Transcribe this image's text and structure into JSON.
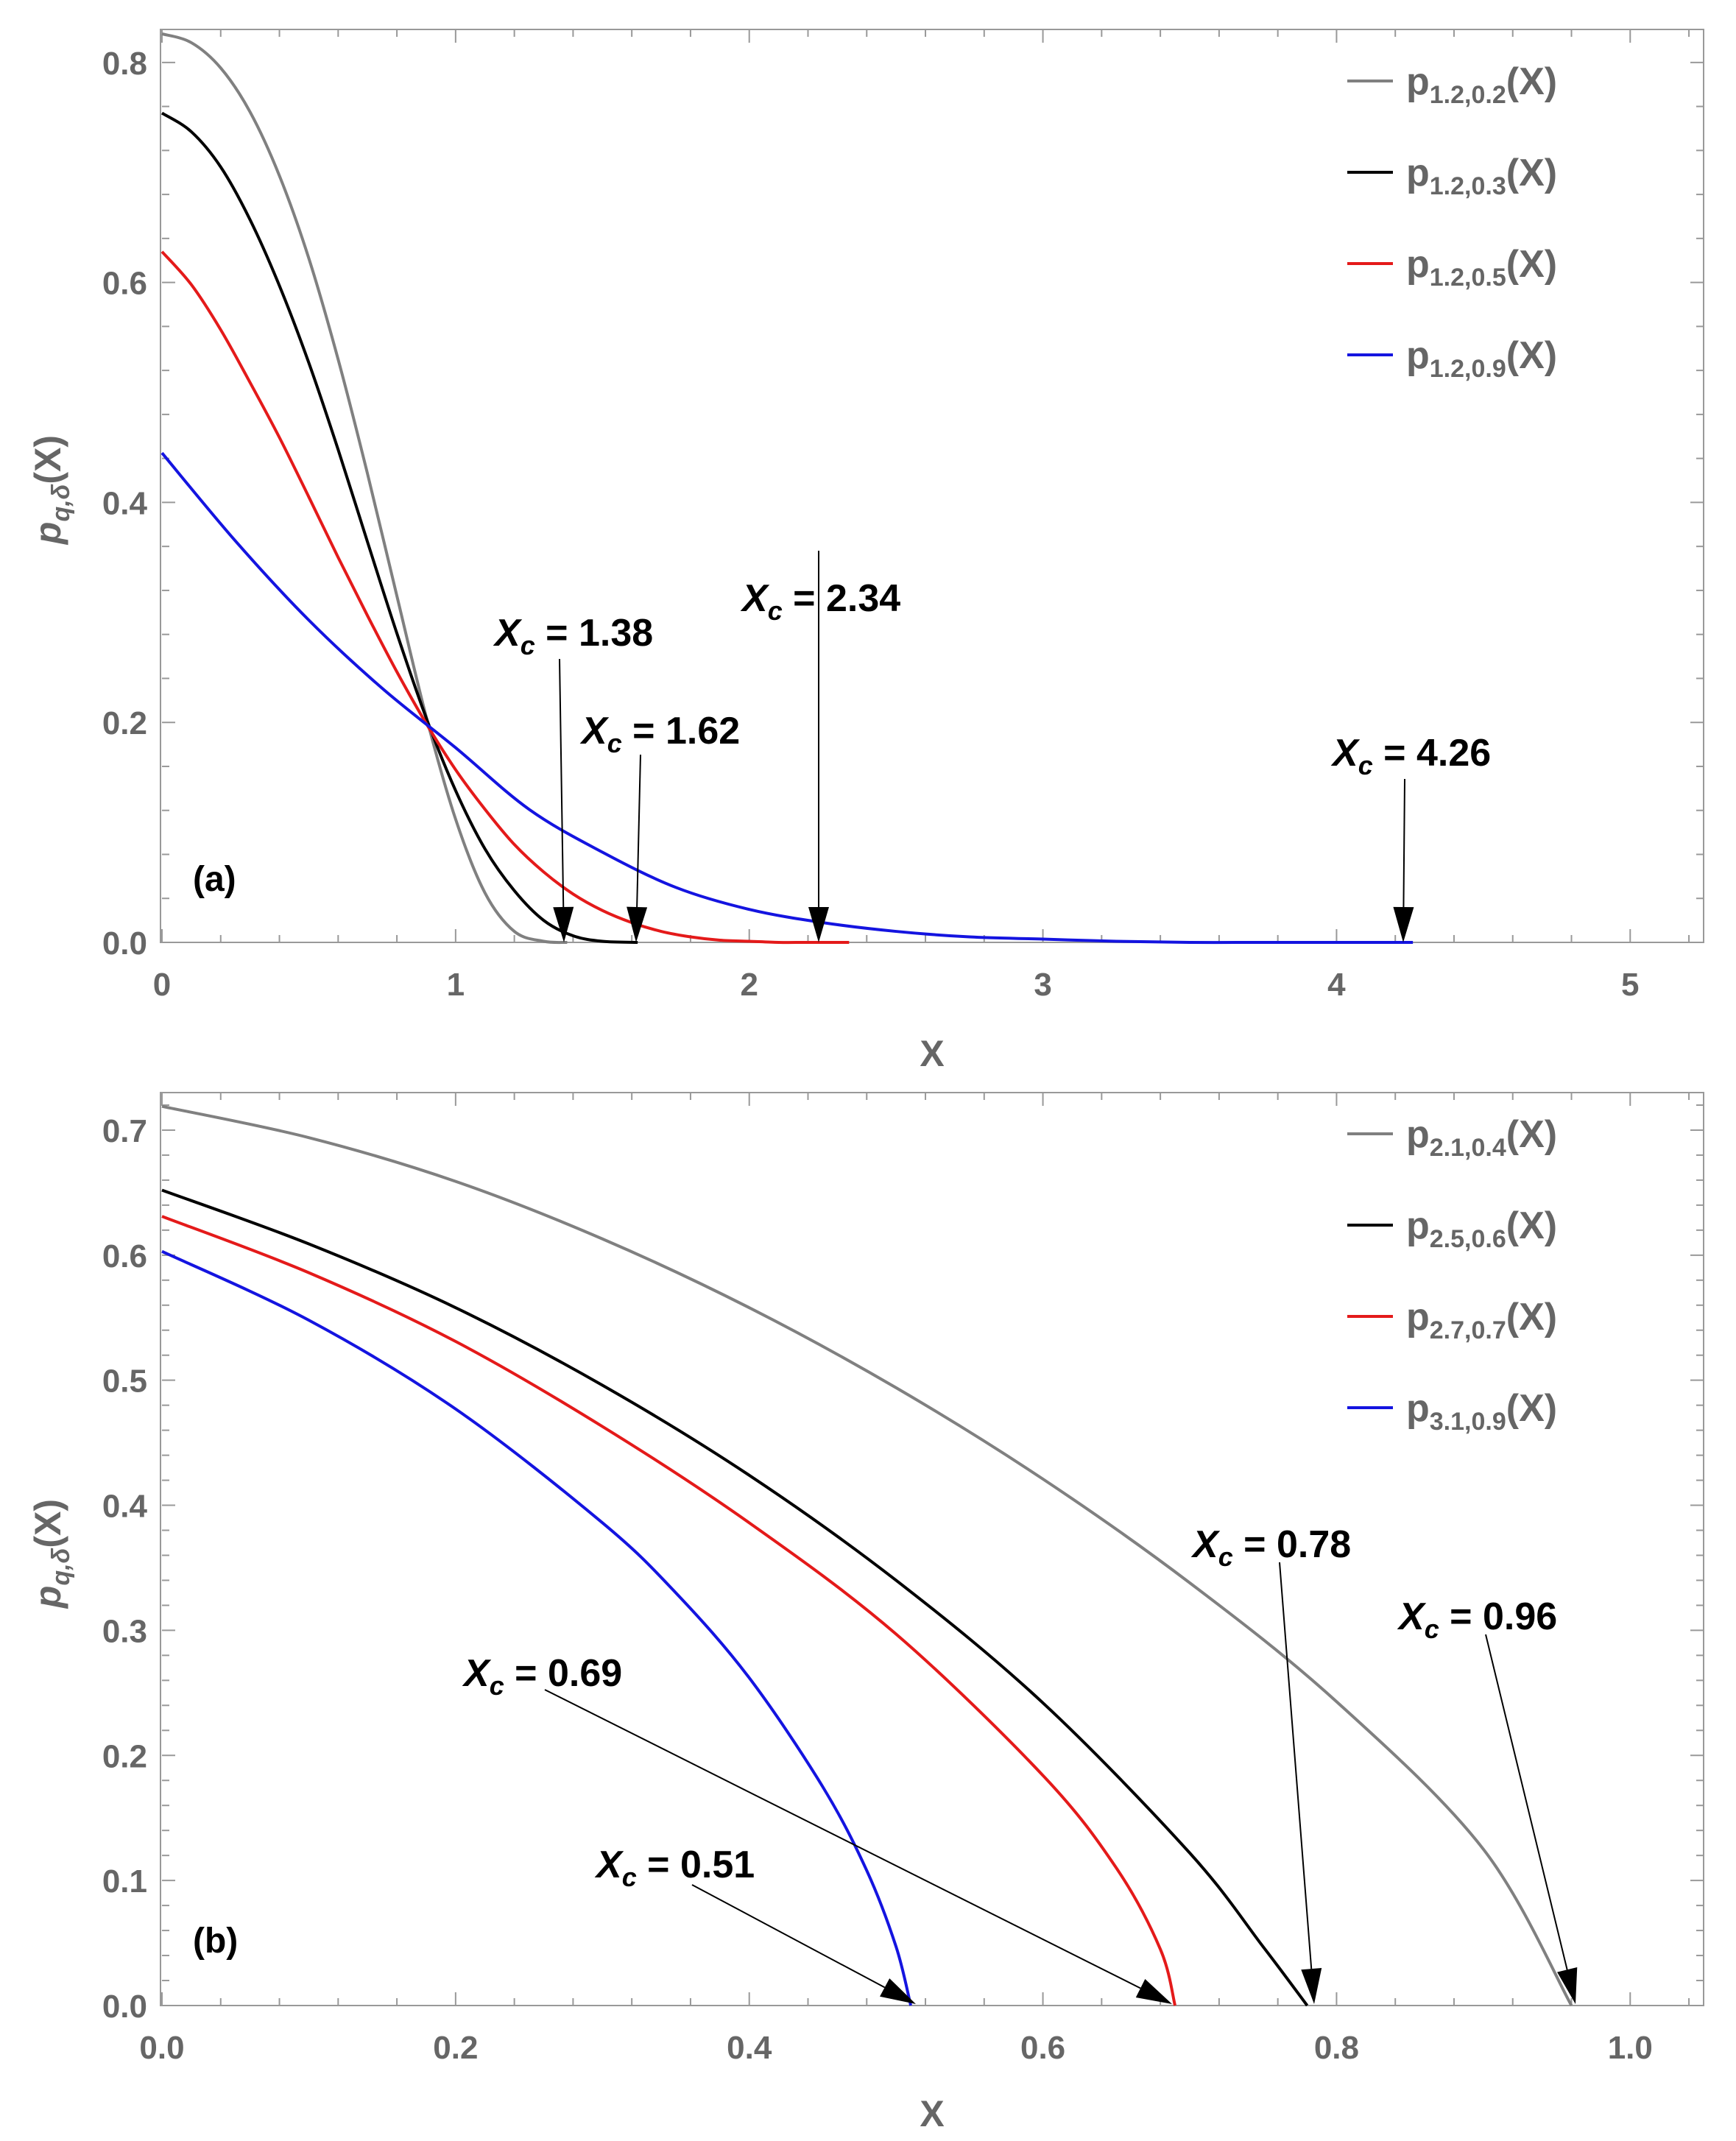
{
  "chart_data": [
    {
      "type": "line",
      "panel_label": "(a)",
      "xlabel": "X",
      "ylabel": {
        "base": "p",
        "sub": "q,δ",
        "tail": "(X)"
      },
      "xlim": [
        0,
        5.25
      ],
      "ylim": [
        0,
        0.83
      ],
      "xticks": [
        0,
        1,
        2,
        3,
        4,
        5
      ],
      "xtick_labels": [
        "0",
        "1",
        "2",
        "3",
        "4",
        "5"
      ],
      "yticks": [
        0,
        0.2,
        0.4,
        0.6,
        0.8
      ],
      "ytick_labels": [
        "0.0",
        "0.2",
        "0.4",
        "0.6",
        "0.8"
      ],
      "legend_position": "top-right",
      "series": [
        {
          "name": "p1.2,0.2(X)",
          "label_sub": "1.2,0.2",
          "color": "#808080",
          "xc": 1.38,
          "x": [
            0,
            0.1,
            0.2,
            0.3,
            0.4,
            0.5,
            0.6,
            0.7,
            0.8,
            0.9,
            1.0,
            1.1,
            1.2,
            1.3,
            1.38
          ],
          "y": [
            0.826,
            0.818,
            0.795,
            0.755,
            0.697,
            0.622,
            0.53,
            0.426,
            0.315,
            0.205,
            0.112,
            0.045,
            0.01,
            0.001,
            0.0
          ]
        },
        {
          "name": "p1.2,0.3(X)",
          "label_sub": "1.2,0.3",
          "color": "#000000",
          "xc": 1.62,
          "x": [
            0,
            0.1,
            0.2,
            0.3,
            0.4,
            0.5,
            0.6,
            0.7,
            0.8,
            0.9,
            1.0,
            1.1,
            1.2,
            1.3,
            1.4,
            1.5,
            1.62
          ],
          "y": [
            0.754,
            0.737,
            0.705,
            0.657,
            0.597,
            0.527,
            0.448,
            0.364,
            0.281,
            0.204,
            0.138,
            0.085,
            0.047,
            0.02,
            0.006,
            0.001,
            0.0
          ]
        },
        {
          "name": "p1.2,0.5(X)",
          "label_sub": "1.2,0.5",
          "color": "#e41a1a",
          "xc": 2.34,
          "x": [
            0,
            0.1,
            0.2,
            0.3,
            0.4,
            0.5,
            0.6,
            0.7,
            0.8,
            0.9,
            1.0,
            1.1,
            1.2,
            1.3,
            1.4,
            1.5,
            1.6,
            1.7,
            1.8,
            1.9,
            2.0,
            2.1,
            2.2,
            2.34
          ],
          "y": [
            0.628,
            0.598,
            0.557,
            0.509,
            0.459,
            0.405,
            0.35,
            0.297,
            0.246,
            0.199,
            0.157,
            0.121,
            0.089,
            0.064,
            0.044,
            0.029,
            0.018,
            0.01,
            0.005,
            0.002,
            0.001,
            0.0,
            0.0,
            0.0
          ]
        },
        {
          "name": "p1.2,0.9(X)",
          "label_sub": "1.2,0.9",
          "color": "#1414e0",
          "xc": 4.26,
          "x": [
            0,
            0.25,
            0.5,
            0.75,
            1.0,
            1.25,
            1.5,
            1.75,
            2.0,
            2.25,
            2.5,
            2.75,
            3.0,
            3.25,
            3.5,
            3.75,
            4.0,
            4.26
          ],
          "y": [
            0.445,
            0.365,
            0.293,
            0.231,
            0.177,
            0.121,
            0.082,
            0.05,
            0.03,
            0.018,
            0.01,
            0.005,
            0.003,
            0.001,
            0.0,
            0.0,
            0.0,
            0.0
          ]
        }
      ],
      "annotations": [
        {
          "text": "1.38",
          "label_x": 0.0,
          "target_x": 1.38
        },
        {
          "text": "1.62",
          "label_x": 0.0,
          "target_x": 1.62
        },
        {
          "text": "2.34",
          "label_x": 0.0,
          "target_x": 2.24
        },
        {
          "text": "4.26",
          "label_x": 0.0,
          "target_x": 4.24
        }
      ]
    },
    {
      "type": "line",
      "panel_label": "(b)",
      "xlabel": "X",
      "ylabel": {
        "base": "p",
        "sub": "q,δ",
        "tail": "(X)"
      },
      "xlim": [
        0,
        1.05
      ],
      "ylim": [
        0,
        0.73
      ],
      "xticks": [
        0,
        0.2,
        0.4,
        0.6,
        0.8,
        1.0
      ],
      "xtick_labels": [
        "0.0",
        "0.2",
        "0.4",
        "0.6",
        "0.8",
        "1.0"
      ],
      "yticks": [
        0,
        0.1,
        0.2,
        0.3,
        0.4,
        0.5,
        0.6,
        0.7
      ],
      "ytick_labels": [
        "0.0",
        "0.1",
        "0.2",
        "0.3",
        "0.4",
        "0.5",
        "0.6",
        "0.7"
      ],
      "legend_position": "top-right",
      "series": [
        {
          "name": "p2.1,0.4(X)",
          "label_sub": "2.1,0.4",
          "color": "#808080",
          "xc": 0.96
        },
        {
          "name": "p2.5,0.6(X)",
          "label_sub": "2.5,0.6",
          "color": "#000000",
          "xc": 0.78
        },
        {
          "name": "p2.7,0.7(X)",
          "label_sub": "2.7,0.7",
          "color": "#e41a1a",
          "xc": 0.69
        },
        {
          "name": "p3.1,0.9(X)",
          "label_sub": "3.1,0.9",
          "color": "#1414e0",
          "xc": 0.51
        }
      ],
      "series_values": {
        "x_grid_note": "each series sampled from x=0 to its cutoff xc",
        "p2.1,0.4(X)": {
          "x": [
            0,
            0.1,
            0.2,
            0.3,
            0.4,
            0.5,
            0.6,
            0.7,
            0.8,
            0.9,
            0.96
          ],
          "y": [
            0.719,
            0.694,
            0.659,
            0.613,
            0.558,
            0.494,
            0.421,
            0.338,
            0.243,
            0.125,
            0.0
          ]
        },
        "p2.5,0.6(X)": {
          "x": [
            0,
            0.1,
            0.2,
            0.3,
            0.4,
            0.5,
            0.6,
            0.7,
            0.75,
            0.78
          ],
          "y": [
            0.652,
            0.609,
            0.558,
            0.496,
            0.424,
            0.34,
            0.242,
            0.122,
            0.047,
            0.0
          ]
        },
        "p2.7,0.7(X)": {
          "x": [
            0,
            0.1,
            0.2,
            0.3,
            0.4,
            0.5,
            0.6,
            0.65,
            0.68,
            0.69
          ],
          "y": [
            0.631,
            0.586,
            0.531,
            0.463,
            0.386,
            0.297,
            0.184,
            0.11,
            0.045,
            0.0
          ]
        },
        "p3.1,0.9(X)": {
          "x": [
            0,
            0.1,
            0.2,
            0.3,
            0.35,
            0.4,
            0.45,
            0.48,
            0.5,
            0.51
          ],
          "y": [
            0.603,
            0.548,
            0.477,
            0.386,
            0.33,
            0.262,
            0.175,
            0.108,
            0.047,
            0.0
          ]
        }
      },
      "annotations": [
        {
          "text": "0.78",
          "target_x": 0.785
        },
        {
          "text": "0.96",
          "target_x": 0.965
        },
        {
          "text": "0.69",
          "target_x": 0.69
        },
        {
          "text": "0.51",
          "target_x": 0.51
        }
      ]
    }
  ],
  "annotation_prefix": {
    "base": "X",
    "sub": "c",
    "eq": " = "
  }
}
